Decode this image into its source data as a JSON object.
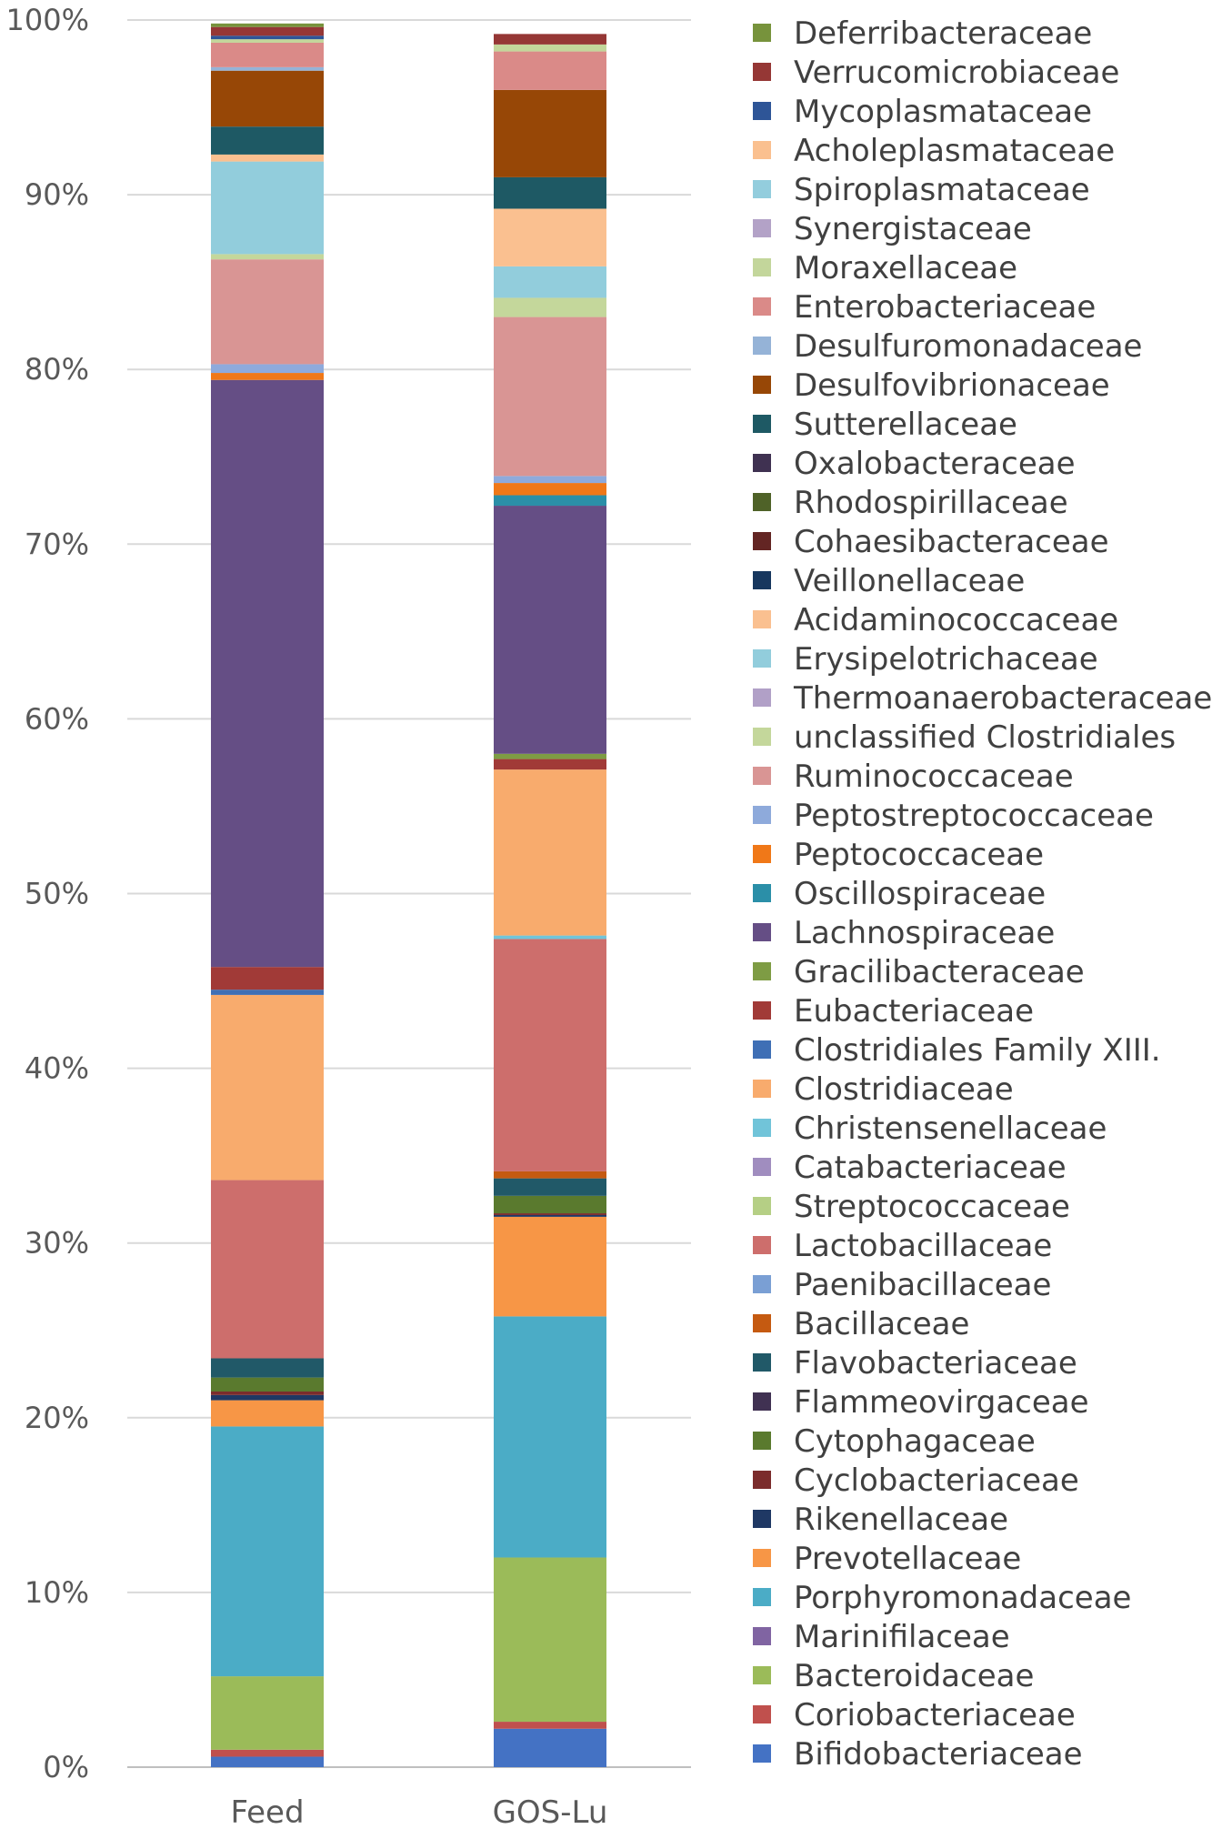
{
  "chart_data": {
    "type": "bar",
    "stacked": true,
    "percent_stacked": true,
    "categories": [
      "Feed",
      "GOS-Lu"
    ],
    "y_ticks": [
      "0%",
      "10%",
      "20%",
      "30%",
      "40%",
      "50%",
      "60%",
      "70%",
      "80%",
      "90%",
      "100%"
    ],
    "ylim": [
      0,
      100
    ],
    "grid": true,
    "legend_position": "right",
    "series": [
      {
        "name": "Bifidobacteriaceae",
        "color": "#4472C4",
        "values": [
          0.6,
          2.2
        ]
      },
      {
        "name": "Coriobacteriaceae",
        "color": "#C0504D",
        "values": [
          0.4,
          0.4
        ]
      },
      {
        "name": "Bacteroidaceae",
        "color": "#9BBB59",
        "values": [
          4.2,
          9.4
        ]
      },
      {
        "name": "Marinifilaceae",
        "color": "#8064A2",
        "values": [
          0.0,
          0.0
        ]
      },
      {
        "name": "Porphyromonadaceae",
        "color": "#4BACC6",
        "values": [
          14.3,
          13.8
        ]
      },
      {
        "name": "Prevotellaceae",
        "color": "#F79646",
        "values": [
          1.5,
          5.7
        ]
      },
      {
        "name": "Rikenellaceae",
        "color": "#1F3864",
        "values": [
          0.3,
          0.1
        ]
      },
      {
        "name": "Cyclobacteriaceae",
        "color": "#7B2C2C",
        "values": [
          0.2,
          0.1
        ]
      },
      {
        "name": "Cytophagaceae",
        "color": "#5A7A2E",
        "values": [
          0.8,
          1.0
        ]
      },
      {
        "name": "Flammeovirgaceae",
        "color": "#403152",
        "values": [
          0.0,
          0.0
        ]
      },
      {
        "name": "Flavobacteriaceae",
        "color": "#215968",
        "values": [
          1.1,
          1.0
        ]
      },
      {
        "name": "Bacillaceae",
        "color": "#C55A11",
        "values": [
          0.0,
          0.4
        ]
      },
      {
        "name": "Paenibacillaceae",
        "color": "#7A9FD4",
        "values": [
          0.0,
          0.0
        ]
      },
      {
        "name": "Lactobacillaceae",
        "color": "#CD6E6C",
        "values": [
          10.2,
          13.3
        ]
      },
      {
        "name": "Streptococcaceae",
        "color": "#B5CF85",
        "values": [
          0.0,
          0.0
        ]
      },
      {
        "name": "Catabacteriaceae",
        "color": "#A08DBF",
        "values": [
          0.0,
          0.0
        ]
      },
      {
        "name": "Christensenellaceae",
        "color": "#71C4D9",
        "values": [
          0.0,
          0.2
        ]
      },
      {
        "name": "Clostridiaceae",
        "color": "#F8AB6D",
        "values": [
          10.6,
          9.5
        ]
      },
      {
        "name": "Clostridiales Family XIII.",
        "color": "#3F6FB5",
        "values": [
          0.3,
          0.0
        ]
      },
      {
        "name": "Eubacteriaceae",
        "color": "#A13A37",
        "values": [
          1.3,
          0.6
        ]
      },
      {
        "name": "Gracilibacteraceae",
        "color": "#7E9C44",
        "values": [
          0.0,
          0.3
        ]
      },
      {
        "name": "Lachnospiraceae",
        "color": "#654E85",
        "values": [
          33.6,
          14.2
        ]
      },
      {
        "name": "Oscillospiraceae",
        "color": "#2B8FA8",
        "values": [
          0.0,
          0.6
        ]
      },
      {
        "name": "Peptococcaceae",
        "color": "#F07818",
        "values": [
          0.4,
          0.7
        ]
      },
      {
        "name": "Peptostreptococcaceae",
        "color": "#8EAADB",
        "values": [
          0.5,
          0.4
        ]
      },
      {
        "name": "Ruminococcaceae",
        "color": "#D99594",
        "values": [
          6.0,
          9.1
        ]
      },
      {
        "name": "unclassified Clostridiales",
        "color": "#C4D79B",
        "values": [
          0.3,
          1.1
        ]
      },
      {
        "name": "Thermoanaerobacteraceae",
        "color": "#B1A0C7",
        "values": [
          0.0,
          0.0
        ]
      },
      {
        "name": "Erysipelotrichaceae",
        "color": "#92CDDC",
        "values": [
          5.3,
          1.8
        ]
      },
      {
        "name": "Acidaminococcaceae",
        "color": "#FAC090",
        "values": [
          0.4,
          3.3
        ]
      },
      {
        "name": "Veillonellaceae",
        "color": "#17375E",
        "values": [
          0.0,
          0.0
        ]
      },
      {
        "name": "Cohaesibacteraceae",
        "color": "#632523",
        "values": [
          0.0,
          0.0
        ]
      },
      {
        "name": "Rhodospirillaceae",
        "color": "#4F6228",
        "values": [
          0.0,
          0.0
        ]
      },
      {
        "name": "Oxalobacteraceae",
        "color": "#3F3151",
        "values": [
          0.0,
          0.0
        ]
      },
      {
        "name": "Sutterellaceae",
        "color": "#1E5964",
        "values": [
          1.6,
          1.8
        ]
      },
      {
        "name": "Desulfovibrionaceae",
        "color": "#974706",
        "values": [
          3.2,
          5.0
        ]
      },
      {
        "name": "Desulfuromonadaceae",
        "color": "#95B3D7",
        "values": [
          0.2,
          0.0
        ]
      },
      {
        "name": "Enterobacteriaceae",
        "color": "#DA8A88",
        "values": [
          1.4,
          2.2
        ]
      },
      {
        "name": "Moraxellaceae",
        "color": "#C3D69B",
        "values": [
          0.2,
          0.4
        ]
      },
      {
        "name": "Synergistaceae",
        "color": "#B3A2C7",
        "values": [
          0.0,
          0.0
        ]
      },
      {
        "name": "Spiroplasmataceae",
        "color": "#93CDDD",
        "values": [
          0.0,
          0.0
        ]
      },
      {
        "name": "Acholeplasmataceae",
        "color": "#FAC08F",
        "values": [
          0.0,
          0.0
        ]
      },
      {
        "name": "Mycoplasmataceae",
        "color": "#2E5597",
        "values": [
          0.2,
          0.0
        ]
      },
      {
        "name": "Verrucomicrobiaceae",
        "color": "#953735",
        "values": [
          0.5,
          0.6
        ]
      },
      {
        "name": "Deferribacteraceae",
        "color": "#77933C",
        "values": [
          0.2,
          0.0
        ]
      }
    ]
  }
}
